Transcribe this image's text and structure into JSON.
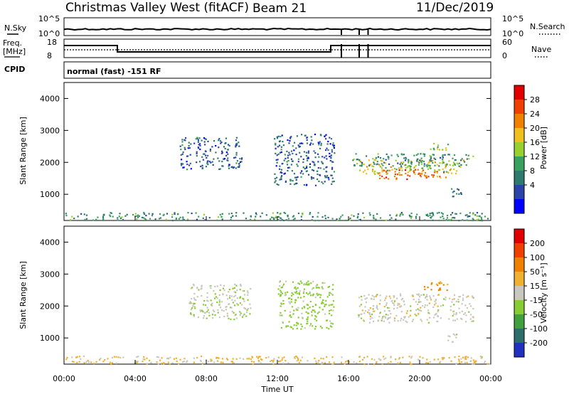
{
  "header": {
    "station": "Christmas Valley West (fitACF)",
    "beam": "Beam 21",
    "date": "11/Dec/2019"
  },
  "strip_labels": {
    "nsky": "N.Sky",
    "nsky_ticks": [
      "10^5",
      "10^0"
    ],
    "nsearch": "N.Search",
    "nsearch_ticks": [
      "10^5",
      "10^0"
    ],
    "freq_line1": "Freq.",
    "freq_line2": "[MHz]",
    "freq_ticks": [
      "18",
      "8"
    ],
    "nave": "Nave",
    "nave_ticks": [
      "60",
      "0"
    ],
    "cpid": "CPID",
    "cpid_text": "normal (fast) -151 RF"
  },
  "chart_data": [
    {
      "type": "heatmap",
      "name": "power",
      "ylabel": "Slant Range [km]",
      "yticks": [
        1000,
        2000,
        3000,
        4000
      ],
      "ylim": [
        180,
        4500
      ],
      "xlim": [
        0,
        24
      ],
      "colorbar_label": "Power [dB]",
      "colorbar_ticks": [
        "28",
        "24",
        "20",
        "16",
        "12",
        "8",
        "4"
      ],
      "colorbar_colors": [
        "#0000ff",
        "#2a44aa",
        "#2e7a6e",
        "#3aa060",
        "#98d030",
        "#f0c020",
        "#f08000",
        "#f04000",
        "#e00000"
      ],
      "features": [
        {
          "t0": 17.6,
          "t1": 21.5,
          "r0": 1480,
          "r1": 1800,
          "level": 28
        },
        {
          "t0": 16.5,
          "t1": 22.5,
          "r0": 1650,
          "r1": 2100,
          "level": 20
        },
        {
          "t0": 16.2,
          "t1": 23.0,
          "r0": 1900,
          "r1": 2300,
          "level": 12
        },
        {
          "t0": 20.5,
          "t1": 21.6,
          "r0": 2400,
          "r1": 2650,
          "level": 18
        },
        {
          "t0": 21.5,
          "t1": 22.4,
          "r0": 900,
          "r1": 1200,
          "level": 10
        },
        {
          "t0": 6.5,
          "t1": 10.0,
          "r0": 1800,
          "r1": 2800,
          "level": 8
        },
        {
          "t0": 11.8,
          "t1": 15.2,
          "r0": 1300,
          "r1": 2900,
          "level": 8
        },
        {
          "t0": 0,
          "t1": 24,
          "r0": 200,
          "r1": 450,
          "level": 12
        }
      ]
    },
    {
      "type": "heatmap",
      "name": "velocity",
      "ylabel": "Slant Range [km]",
      "yticks": [
        1000,
        2000,
        3000,
        4000
      ],
      "ylim": [
        180,
        4500
      ],
      "xlim": [
        0,
        24
      ],
      "xticks": [
        "00:00",
        "04:00",
        "08:00",
        "12:00",
        "16:00",
        "20:00",
        "00:00"
      ],
      "xlabel": "Time UT",
      "colorbar_label": "Velocity [m s⁻¹]",
      "colorbar_ticks": [
        "200",
        "100",
        "50",
        "15",
        "-15",
        "-50",
        "-100",
        "-200"
      ],
      "colorbar_colors": [
        "#2030c0",
        "#2d6e6a",
        "#40a040",
        "#88cc33",
        "#c8c8c0",
        "#f0b030",
        "#f08000",
        "#f04000",
        "#e00000"
      ],
      "features": [
        {
          "t0": 16.5,
          "t1": 23.0,
          "r0": 1500,
          "r1": 2400,
          "level": 0
        },
        {
          "t0": 20.2,
          "t1": 21.6,
          "r0": 2500,
          "r1": 2800,
          "level": -60
        },
        {
          "t0": 21.5,
          "t1": 22.4,
          "r0": 900,
          "r1": 1150,
          "level": 0
        },
        {
          "t0": 7.0,
          "t1": 10.5,
          "r0": 1600,
          "r1": 2700,
          "level": 10
        },
        {
          "t0": 12.0,
          "t1": 15.2,
          "r0": 1300,
          "r1": 2800,
          "level": 30
        },
        {
          "t0": 0,
          "t1": 24,
          "r0": 200,
          "r1": 450,
          "level": -20
        }
      ]
    }
  ]
}
